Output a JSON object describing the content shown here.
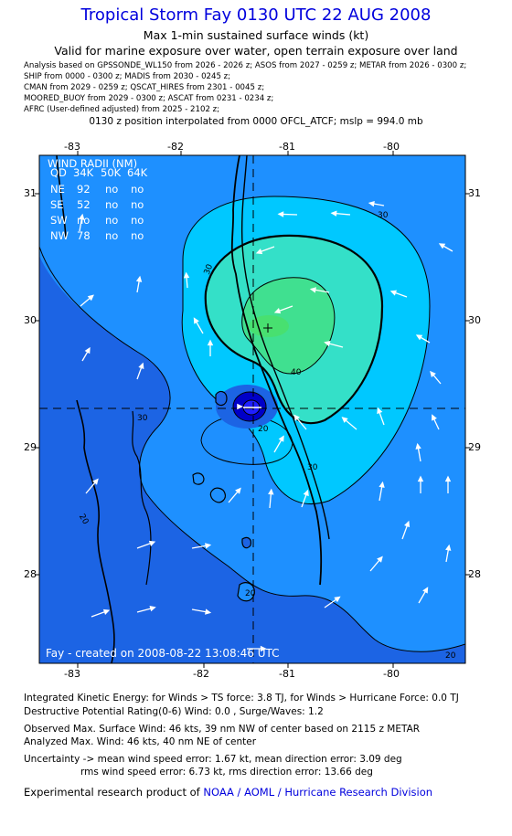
{
  "header": {
    "title": "Tropical Storm Fay 0130 UTC 22 AUG 2008",
    "subtitle1": "Max 1-min sustained surface winds (kt)",
    "subtitle2": "Valid for marine exposure over water, open terrain exposure over land",
    "analysis_lines": [
      "Analysis based on  GPSSONDE_WL150 from 2026 - 2026 z;  ASOS from 2027 - 0259 z;  METAR from 2026 - 0300 z;",
      "SHIP from 0000 - 0300 z;  MADIS from 2030 - 0245 z;",
      "CMAN from 2029 - 0259 z;  QSCAT_HIRES from 2301 - 0045 z;",
      "MOORED_BUOY from 2029 - 0300 z;  ASCAT from 0231 - 0234 z;",
      "AFRC (User-defined adjusted) from 2025 - 2102 z;"
    ],
    "position_note": "0130 z position interpolated from 0000 OFCL_ATCF; mslp = 994.0 mb"
  },
  "map": {
    "x_ticks": [
      "-83",
      "-82",
      "-81",
      "-80"
    ],
    "y_ticks": [
      "31",
      "30",
      "29",
      "28"
    ],
    "wind_radii": {
      "title": "WIND RADII (NM)",
      "header": [
        "QD",
        "34K",
        "50K",
        "64K"
      ],
      "rows": [
        [
          "NE",
          "92",
          "no",
          "no"
        ],
        [
          "SE",
          "52",
          "no",
          "no"
        ],
        [
          "SW",
          "no",
          "no",
          "no"
        ],
        [
          "NW",
          "78",
          "no",
          "no"
        ]
      ]
    },
    "contour_labels": [
      "30",
      "30",
      "40",
      "30",
      "20",
      "20",
      "20",
      "20",
      "30"
    ],
    "credit": "Fay - created on 2008-08-22 13:08:46 UTC",
    "colors": {
      "ocean_low": "#1c64e4",
      "wind_20_30": "#1e90ff",
      "wind_30_40": "#00c8ff",
      "wind_40_50": "#34e0c8",
      "wind_max": "#40e090",
      "center": "#0000c8"
    }
  },
  "footer": {
    "ike": "Integrated Kinetic Energy:  for Winds > TS force: 3.8 TJ,  for Winds > Hurricane Force: 0.0 TJ",
    "dpr": "Destructive Potential Rating(0-6)   Wind: 0.0 , Surge/Waves: 1.2",
    "observed": "Observed Max. Surface Wind: 46 kts, 39 nm NW of center based on 2115 z METAR",
    "analyzed": "Analyzed Max. Wind: 46 kts, 40 nm NE of center",
    "uncertainty1": "Uncertainty -> mean wind speed error: 1.67 kt,   mean direction error: 3.09 deg",
    "uncertainty2": "rms wind speed error: 6.73 kt,   rms direction error: 13.66 deg",
    "product_prefix": "Experimental research product of ",
    "product_org": "NOAA / AOML / Hurricane Research Division"
  }
}
